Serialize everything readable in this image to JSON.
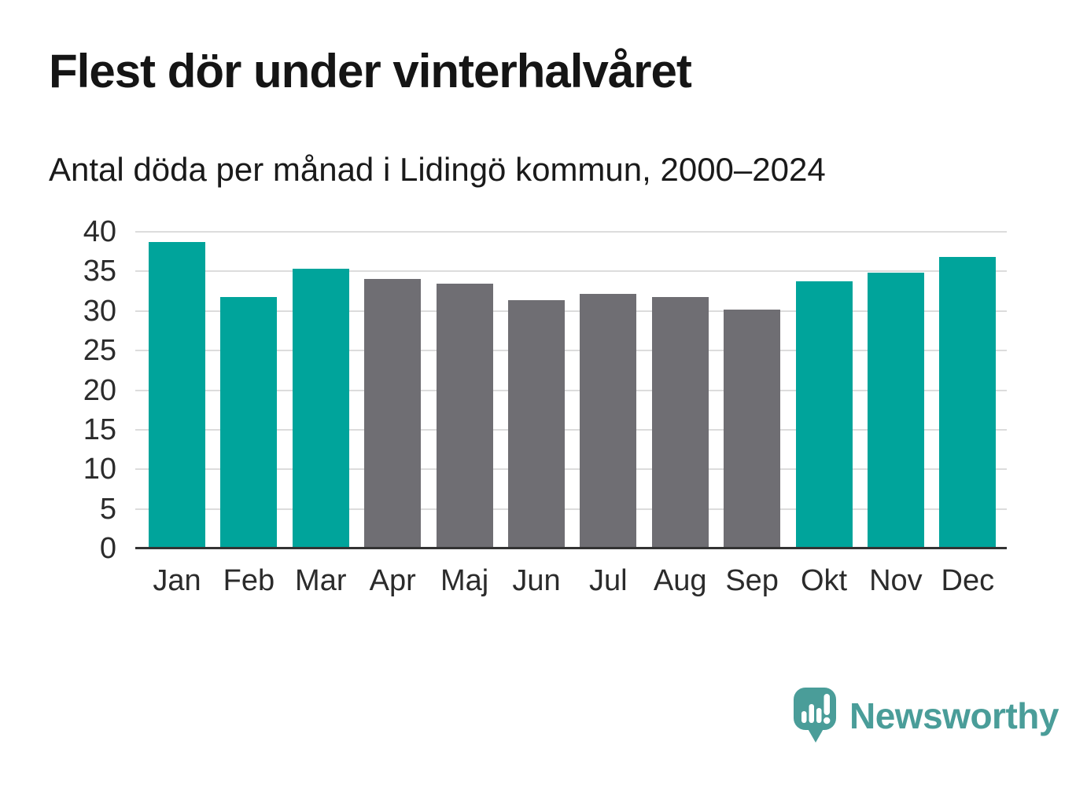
{
  "title": "Flest dör under vinterhalvåret",
  "subtitle": "Antal döda per månad i Lidingö kommun, 2000–2024",
  "brand": {
    "name": "Newsworthy",
    "icon": "speech-bubble-bar-chart-exclamation-icon",
    "color": "#4a9d99"
  },
  "colors": {
    "winter_bar": "#00a49b",
    "summer_bar": "#6f6e73",
    "gridline": "#dcdcdc",
    "axis_line": "#333333",
    "tick_text": "#2b2b2b",
    "title_text": "#151515"
  },
  "chart_data": {
    "type": "bar",
    "title": "Flest dör under vinterhalvåret",
    "subtitle": "Antal döda per månad i Lidingö kommun, 2000–2024",
    "categories": [
      "Jan",
      "Feb",
      "Mar",
      "Apr",
      "Maj",
      "Jun",
      "Jul",
      "Aug",
      "Sep",
      "Okt",
      "Nov",
      "Dec"
    ],
    "values": [
      38.7,
      31.8,
      35.3,
      34.0,
      33.5,
      31.4,
      32.2,
      31.8,
      30.2,
      33.7,
      34.8,
      36.8
    ],
    "bar_groups": [
      "winter",
      "winter",
      "winter",
      "summer",
      "summer",
      "summer",
      "summer",
      "summer",
      "summer",
      "winter",
      "winter",
      "winter"
    ],
    "xlabel": "",
    "ylabel": "",
    "ylim": [
      0,
      40
    ],
    "yticks": [
      0,
      5,
      10,
      15,
      20,
      25,
      30,
      35,
      40
    ],
    "grid": "horizontal",
    "legend": "none"
  }
}
